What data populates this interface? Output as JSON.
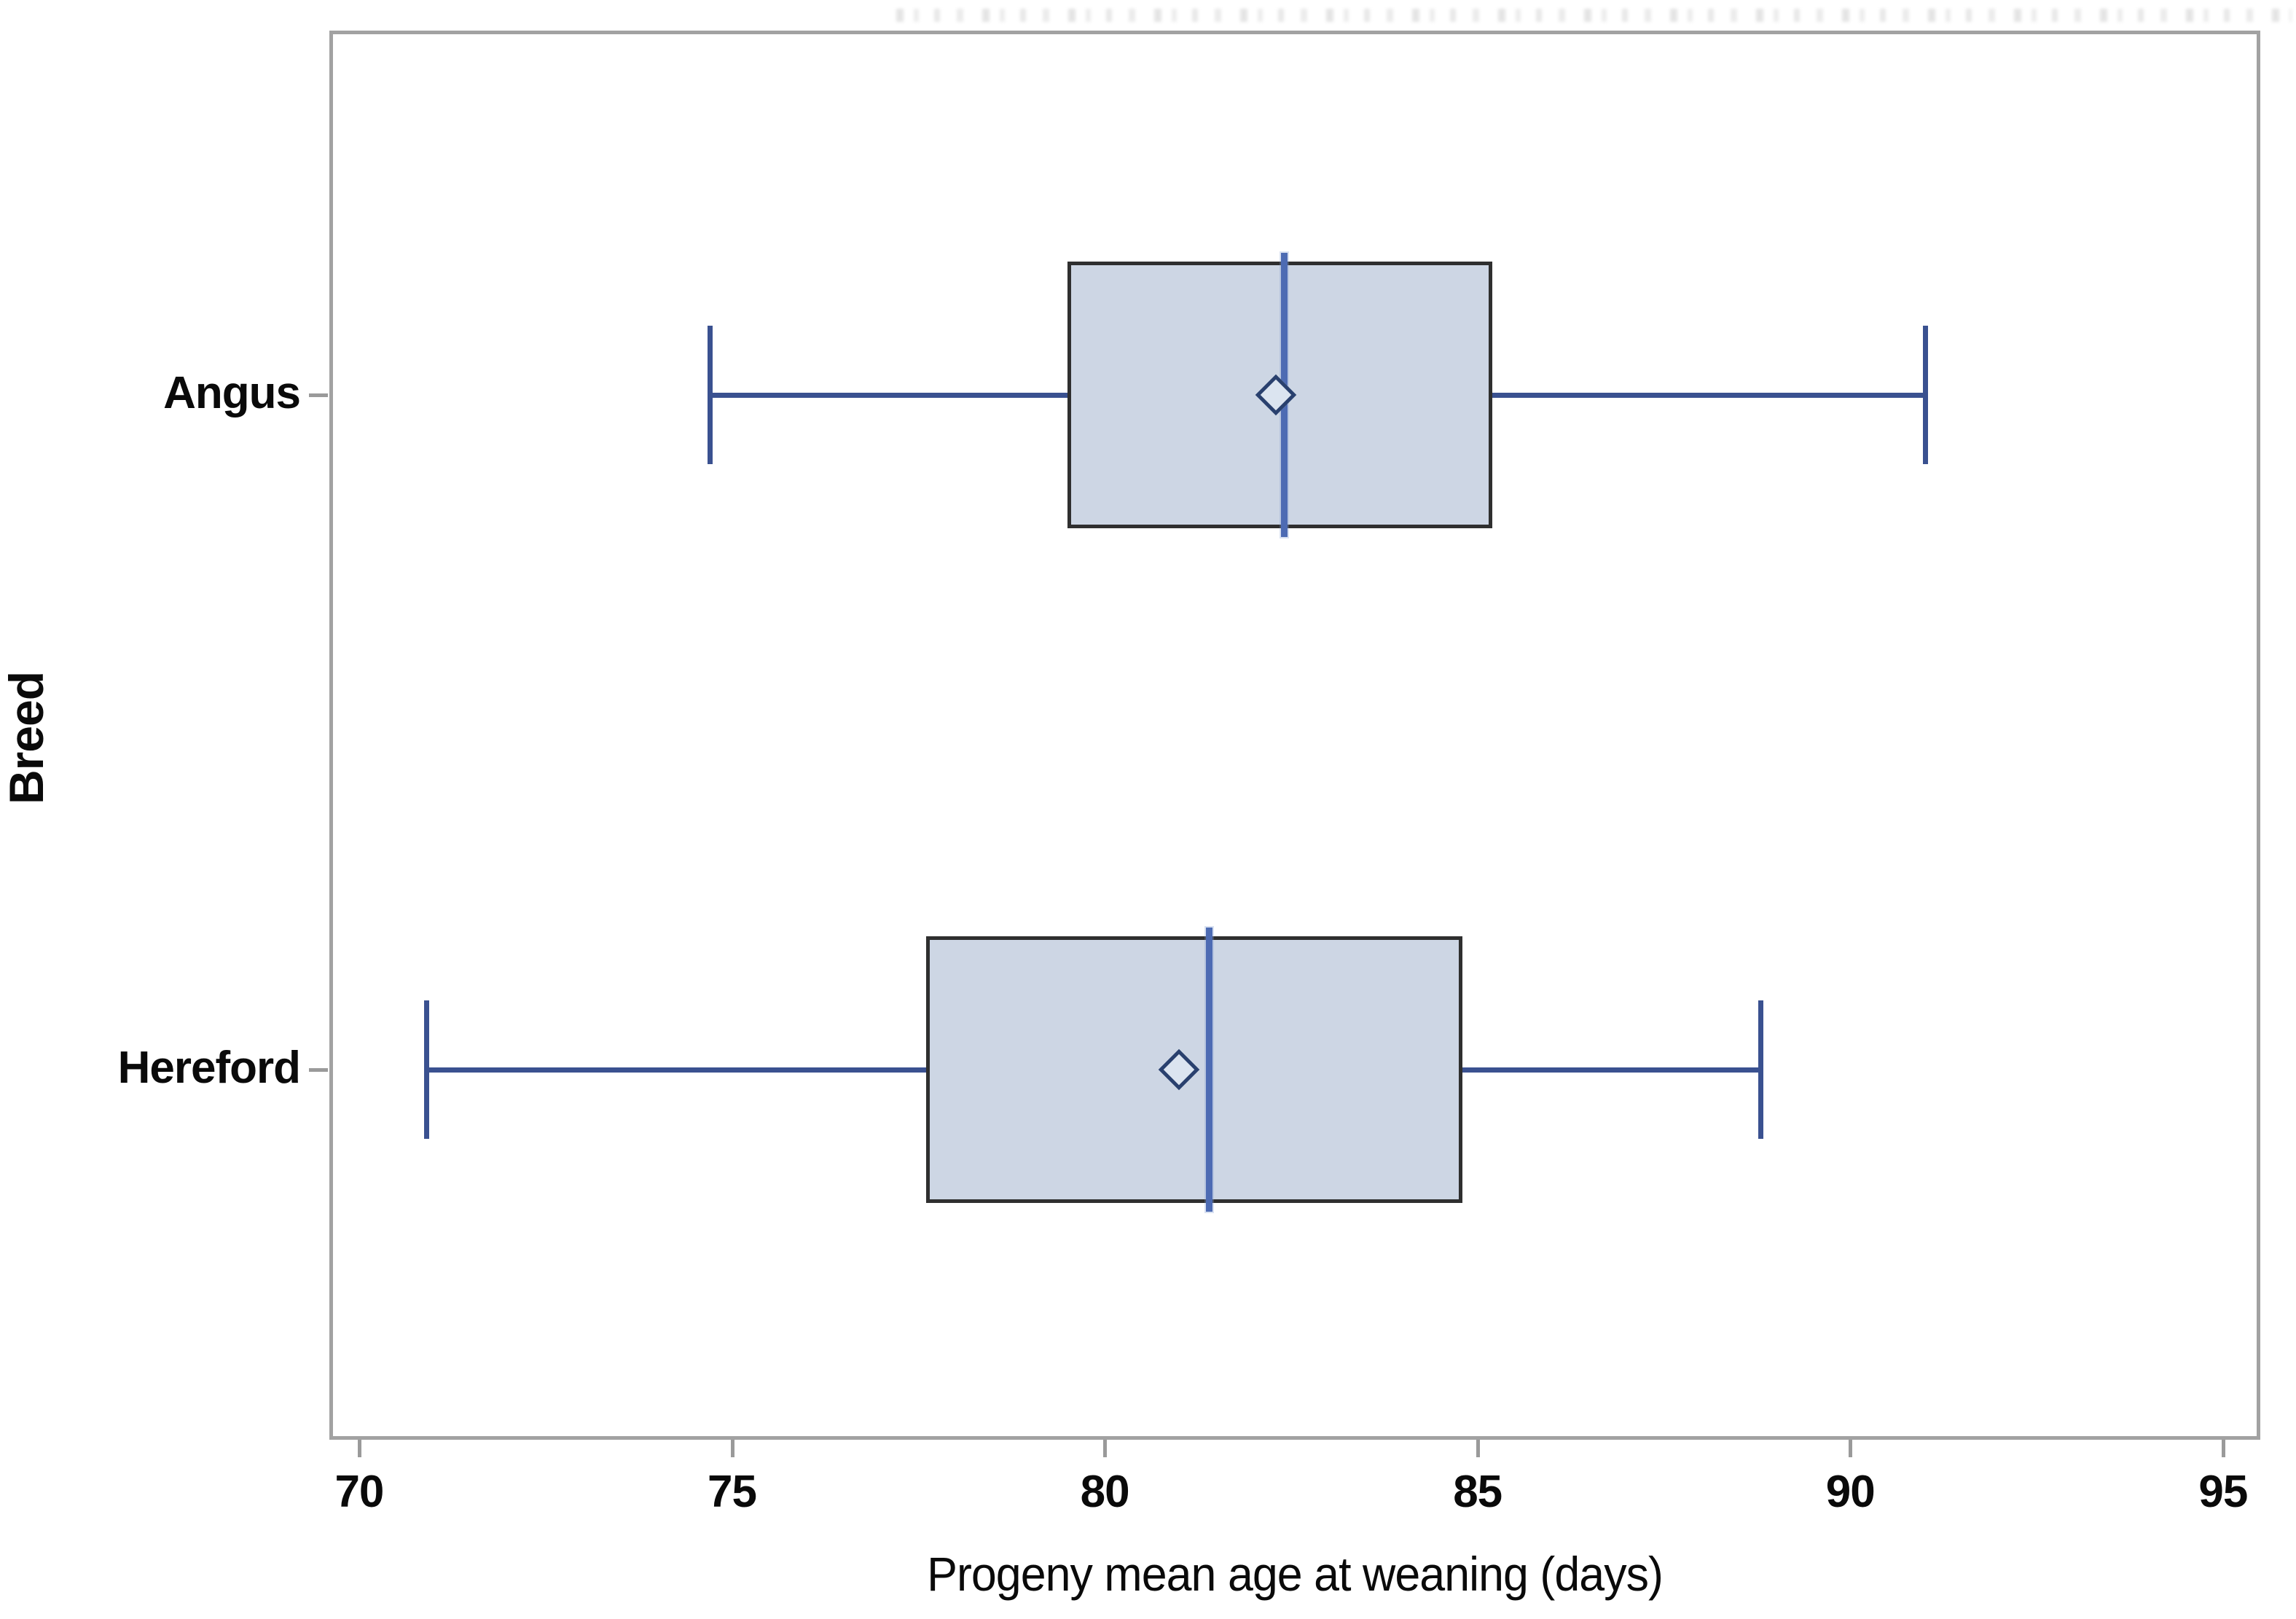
{
  "chart_data": {
    "type": "boxplot",
    "orientation": "horizontal",
    "title": "",
    "clipped_title_visible": true,
    "xlabel": "Progeny mean age at weaning (days)",
    "ylabel": "Breed",
    "categories": [
      "Angus",
      "Hereford"
    ],
    "series": [
      {
        "name": "Angus",
        "whisker_low": 74.7,
        "q1": 79.5,
        "median": 82.4,
        "mean": 82.3,
        "q3": 85.2,
        "whisker_high": 91.0
      },
      {
        "name": "Hereford",
        "whisker_low": 70.9,
        "q1": 77.6,
        "median": 81.4,
        "mean": 81.0,
        "q3": 84.8,
        "whisker_high": 88.8
      }
    ],
    "x_ticks": [
      70,
      75,
      80,
      85,
      90,
      95
    ],
    "xlim": [
      69.6,
      95.5
    ],
    "grid": false,
    "legend": "none",
    "colors": {
      "frame": "#a2a2a2",
      "tick": "#9a9a9a",
      "text": "#0a0a0a",
      "box_fill": "#cdd6e4",
      "box_border": "#2f2f2f",
      "whisker": "#3a5190",
      "median": "#4d6bb3",
      "mean_marker": "#29406e"
    }
  }
}
